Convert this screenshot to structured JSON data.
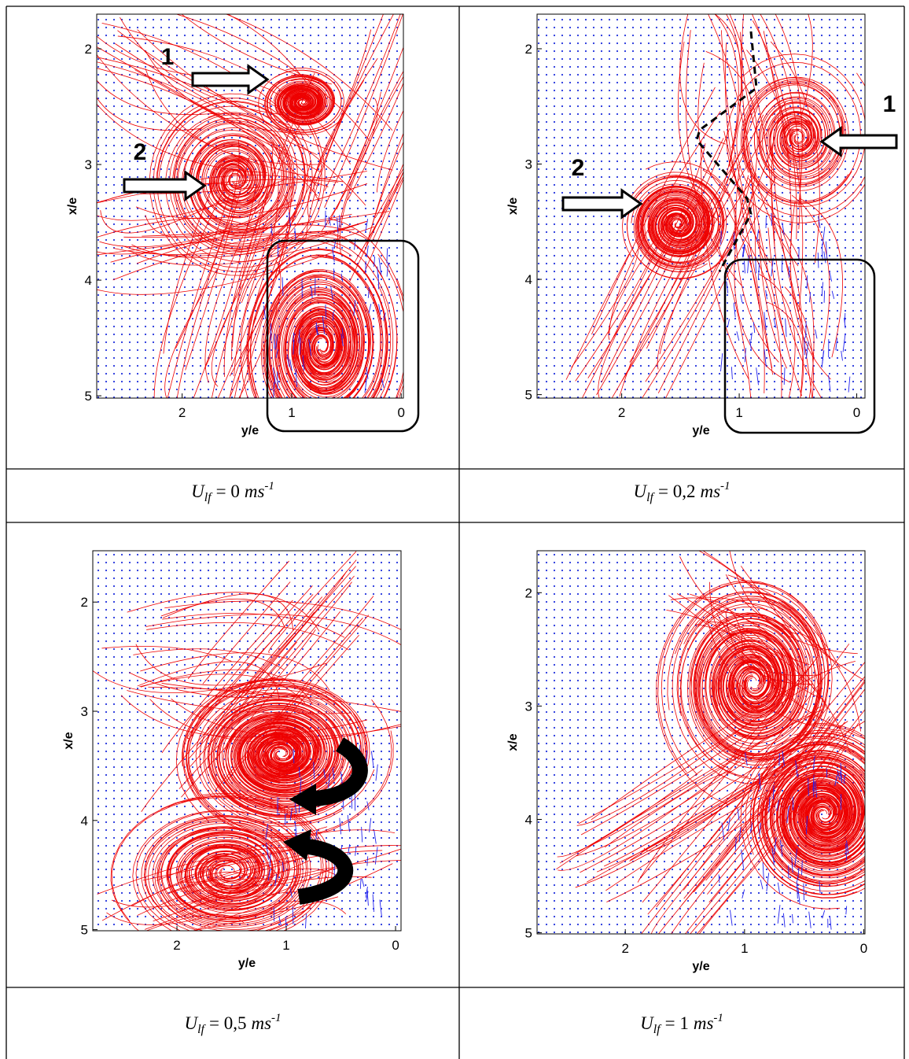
{
  "panels": [
    {
      "plot": {
        "xlabel": "y/e",
        "ylabel": "x/e",
        "xlim": [
          2.78,
          -0.02
        ],
        "ylim": [
          1.7,
          5.02
        ],
        "xticks": [
          2,
          1,
          0
        ],
        "yticks": [
          2,
          3,
          4,
          5
        ],
        "annotations": [
          "1",
          "2"
        ]
      },
      "caption": {
        "symbol": "U",
        "subscript": "lf",
        "relation": "= 0",
        "unit": "ms",
        "exponent": "-1"
      }
    },
    {
      "plot": {
        "xlabel": "y/e",
        "ylabel": "x/e",
        "xlim": [
          2.72,
          -0.07
        ],
        "ylim": [
          1.7,
          5.03
        ],
        "xticks": [
          2,
          1,
          0
        ],
        "yticks": [
          2,
          3,
          4,
          5
        ],
        "annotations": [
          "1",
          "2"
        ]
      },
      "caption": {
        "symbol": "U",
        "subscript": "lf",
        "relation": "= 0,2",
        "unit": "ms",
        "exponent": "-1"
      }
    },
    {
      "plot": {
        "xlabel": "y/e",
        "ylabel": "x/e",
        "xlim": [
          2.77,
          -0.05
        ],
        "ylim": [
          1.53,
          5.01
        ],
        "xticks": [
          2,
          1,
          0
        ],
        "yticks": [
          2,
          3,
          4,
          5
        ],
        "annotations": []
      },
      "caption": {
        "symbol": "U",
        "subscript": "lf",
        "relation": "= 0,5",
        "unit": "ms",
        "exponent": "-1"
      }
    },
    {
      "plot": {
        "xlabel": "y/e",
        "ylabel": "x/e",
        "xlim": [
          2.74,
          -0.01
        ],
        "ylim": [
          1.63,
          5.01
        ],
        "xticks": [
          2,
          1,
          0
        ],
        "yticks": [
          2,
          3,
          4,
          5
        ],
        "annotations": []
      },
      "caption": {
        "symbol": "U",
        "subscript": "lf",
        "relation": "= 1",
        "unit": "ms",
        "exponent": "-1"
      }
    }
  ]
}
